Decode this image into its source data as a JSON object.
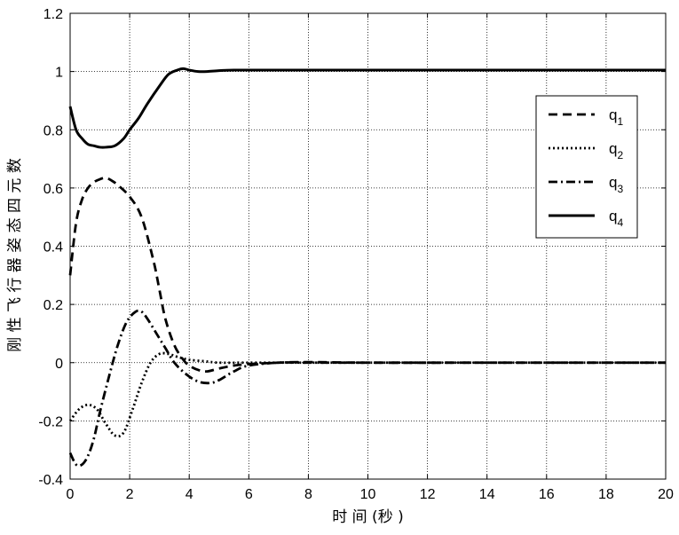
{
  "chart_data": {
    "type": "line",
    "title": "",
    "xlabel": "时 间 (秒 )",
    "ylabel": "刚 性 飞 行 器 姿 态 四 元 数",
    "xlim": [
      0,
      20
    ],
    "ylim": [
      -0.4,
      1.2
    ],
    "xticks": [
      "0",
      "2",
      "4",
      "6",
      "8",
      "10",
      "12",
      "14",
      "16",
      "18",
      "20"
    ],
    "yticks": [
      "-0.4",
      "-0.2",
      "0",
      "0.2",
      "0.4",
      "0.6",
      "0.8",
      "1",
      "1.2"
    ],
    "grid": true,
    "legend_position": "top-right",
    "series": [
      {
        "name": "q1",
        "legend_main": "q",
        "legend_sub": "1",
        "dash": "dashed",
        "x": [
          0,
          0.2,
          0.4,
          0.6,
          0.8,
          1.0,
          1.2,
          1.4,
          1.6,
          2.0,
          2.4,
          2.8,
          3.0,
          3.2,
          3.5,
          3.8,
          4.0,
          4.3,
          4.6,
          5.0,
          5.5,
          6.0,
          7.0,
          8.0,
          10.0,
          15.0,
          20.0
        ],
        "y": [
          0.3,
          0.48,
          0.56,
          0.6,
          0.62,
          0.63,
          0.635,
          0.625,
          0.61,
          0.57,
          0.5,
          0.35,
          0.25,
          0.15,
          0.06,
          0.01,
          -0.01,
          -0.025,
          -0.03,
          -0.02,
          -0.01,
          -0.005,
          0.0,
          0.002,
          0.0,
          0.0,
          0.0
        ]
      },
      {
        "name": "q2",
        "legend_main": "q",
        "legend_sub": "2",
        "dash": "dotted",
        "x": [
          0,
          0.3,
          0.6,
          0.9,
          1.2,
          1.5,
          1.8,
          2.1,
          2.4,
          2.7,
          3.0,
          3.3,
          3.6,
          4.0,
          4.5,
          5.0,
          6.0,
          7.0,
          8.0,
          10.0,
          15.0,
          20.0
        ],
        "y": [
          -0.2,
          -0.16,
          -0.145,
          -0.16,
          -0.21,
          -0.25,
          -0.24,
          -0.16,
          -0.07,
          0.0,
          0.03,
          0.03,
          0.02,
          0.01,
          0.005,
          0.0,
          0.0,
          0.0,
          0.0,
          0.0,
          0.0,
          0.0
        ]
      },
      {
        "name": "q3",
        "legend_main": "q",
        "legend_sub": "3",
        "dash": "dashdot",
        "x": [
          0,
          0.2,
          0.4,
          0.6,
          0.8,
          1.0,
          1.3,
          1.6,
          1.9,
          2.2,
          2.4,
          2.6,
          2.9,
          3.2,
          3.5,
          3.9,
          4.3,
          4.7,
          5.0,
          5.5,
          6.0,
          7.0,
          8.0,
          10.0,
          15.0,
          20.0
        ],
        "y": [
          -0.31,
          -0.35,
          -0.35,
          -0.32,
          -0.26,
          -0.17,
          -0.05,
          0.06,
          0.14,
          0.175,
          0.175,
          0.15,
          0.1,
          0.05,
          0.0,
          -0.04,
          -0.065,
          -0.07,
          -0.06,
          -0.03,
          -0.01,
          0.0,
          0.0,
          0.0,
          0.0,
          0.0
        ]
      },
      {
        "name": "q4",
        "legend_main": "q",
        "legend_sub": "4",
        "dash": "solid",
        "x": [
          0,
          0.2,
          0.4,
          0.6,
          0.8,
          1.0,
          1.2,
          1.5,
          1.8,
          2.0,
          2.3,
          2.6,
          3.0,
          3.3,
          3.6,
          3.8,
          4.0,
          4.3,
          4.6,
          5.0,
          5.5,
          6.0,
          8.0,
          10.0,
          15.0,
          20.0
        ],
        "y": [
          0.88,
          0.8,
          0.77,
          0.75,
          0.745,
          0.74,
          0.74,
          0.745,
          0.77,
          0.8,
          0.84,
          0.89,
          0.95,
          0.99,
          1.005,
          1.01,
          1.005,
          1.0,
          1.0,
          1.003,
          1.005,
          1.005,
          1.005,
          1.005,
          1.005,
          1.005
        ]
      }
    ]
  }
}
